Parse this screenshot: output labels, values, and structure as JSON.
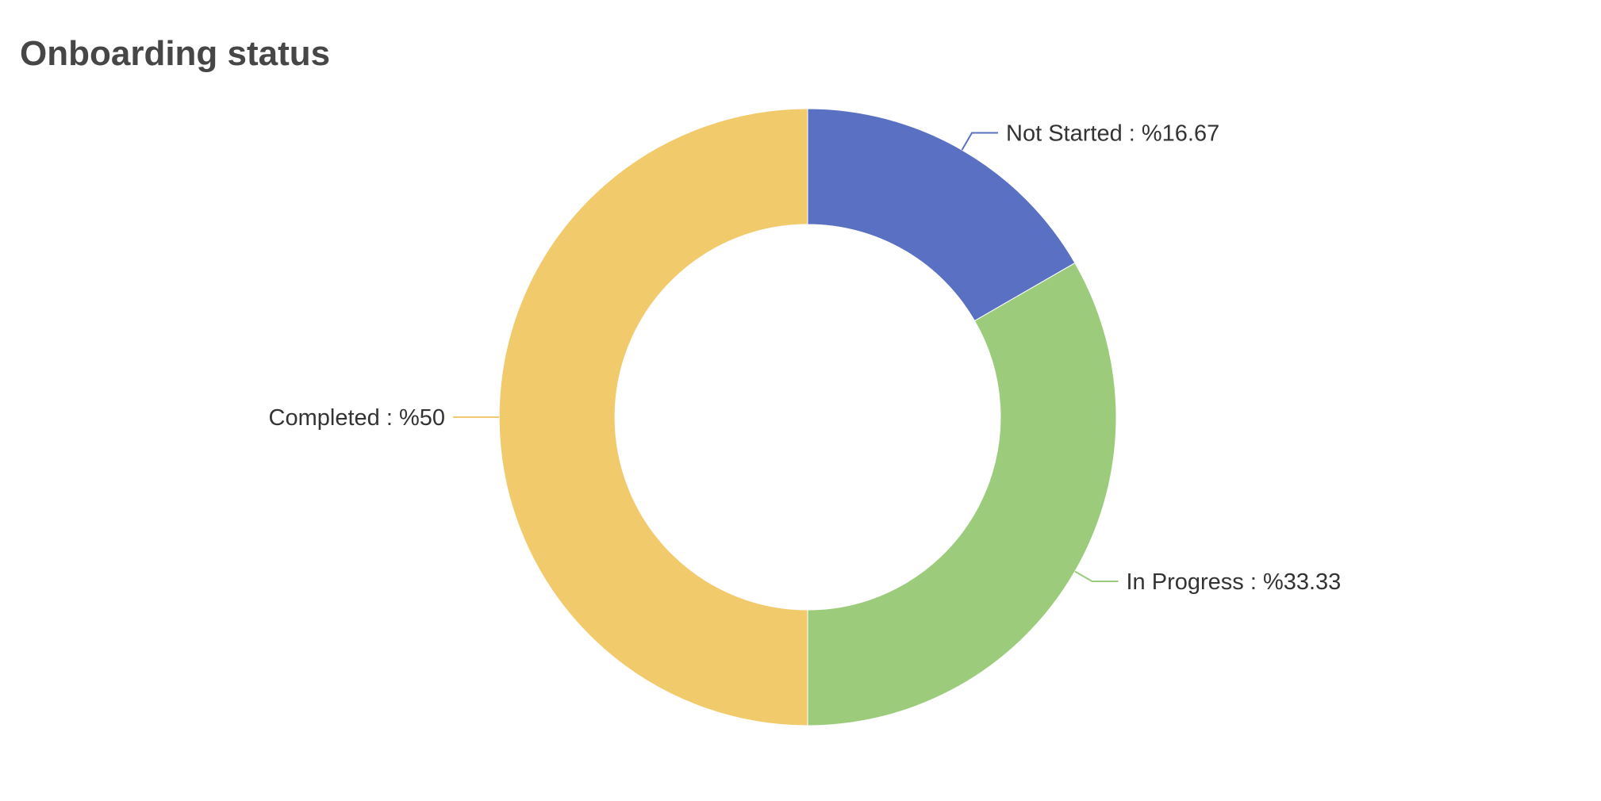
{
  "chart_data": {
    "type": "pie",
    "variant": "donut",
    "title": "Onboarding status",
    "label_format": "{name} : %{percent}",
    "slices": [
      {
        "name": "Not Started",
        "percent": 16.67,
        "value": 16.67,
        "color": "#5a70c2"
      },
      {
        "name": "In Progress",
        "percent": 33.33,
        "value": 33.33,
        "color": "#9dcb7c"
      },
      {
        "name": "Completed",
        "percent": 50,
        "value": 50,
        "color": "#f1ca6c"
      }
    ],
    "start_angle": "top",
    "direction": "clockwise",
    "legend": "none"
  }
}
